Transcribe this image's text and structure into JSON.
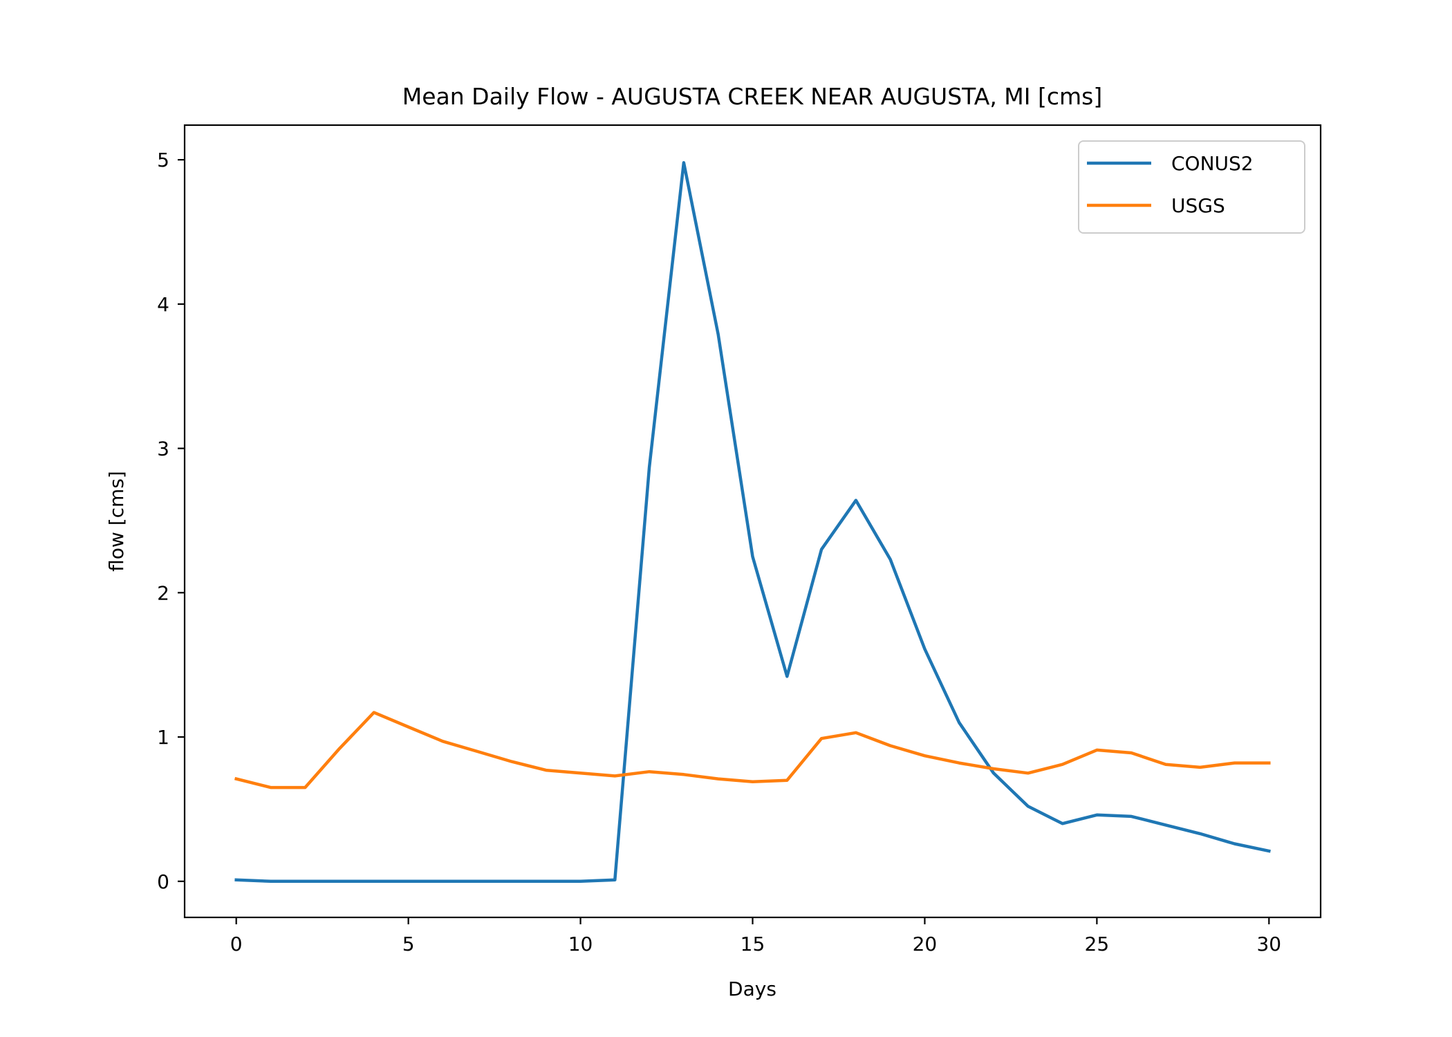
{
  "chart_data": {
    "type": "line",
    "title": "Mean Daily Flow - AUGUSTA CREEK NEAR AUGUSTA, MI [cms]",
    "xlabel": "Days",
    "ylabel": "flow [cms]",
    "xlim": [
      -1.5,
      31.5
    ],
    "ylim": [
      -0.25,
      5.24
    ],
    "xticks": [
      0,
      5,
      10,
      15,
      20,
      25,
      30
    ],
    "yticks": [
      0,
      1,
      2,
      3,
      4,
      5
    ],
    "grid": false,
    "legend": "top-right",
    "x": [
      0,
      1,
      2,
      3,
      4,
      5,
      6,
      7,
      8,
      9,
      10,
      11,
      12,
      13,
      14,
      15,
      16,
      17,
      18,
      19,
      20,
      21,
      22,
      23,
      24,
      25,
      26,
      27,
      28,
      29,
      30
    ],
    "series": [
      {
        "name": "CONUS2",
        "color": "#1f77b4",
        "values": [
          0.01,
          0.0,
          0.0,
          0.0,
          0.0,
          0.0,
          0.0,
          0.0,
          0.0,
          0.0,
          0.0,
          0.01,
          2.87,
          4.98,
          3.79,
          2.25,
          1.42,
          2.3,
          2.64,
          2.23,
          1.61,
          1.1,
          0.75,
          0.52,
          0.4,
          0.46,
          0.45,
          0.39,
          0.33,
          0.26,
          0.21
        ]
      },
      {
        "name": "USGS",
        "color": "#ff7f0e",
        "values": [
          0.71,
          0.65,
          0.65,
          0.92,
          1.17,
          1.07,
          0.97,
          0.9,
          0.83,
          0.77,
          0.75,
          0.73,
          0.76,
          0.74,
          0.71,
          0.69,
          0.7,
          0.99,
          1.03,
          0.94,
          0.87,
          0.82,
          0.78,
          0.75,
          0.81,
          0.91,
          0.89,
          0.81,
          0.79,
          0.82,
          0.82
        ]
      }
    ]
  }
}
